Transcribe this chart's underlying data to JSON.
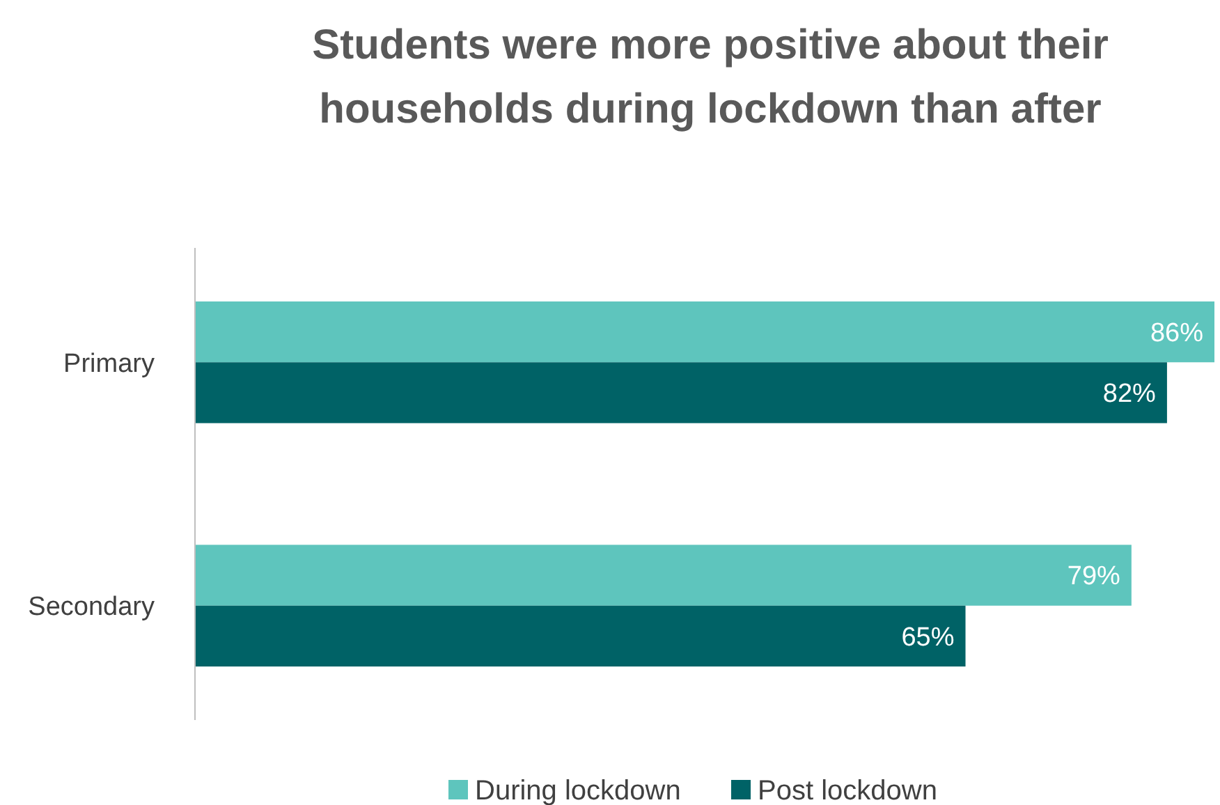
{
  "chart_data": {
    "type": "bar",
    "orientation": "horizontal",
    "title": "Students were more positive about their\nhouseholds during lockdown than after",
    "categories": [
      "Primary",
      "Secondary"
    ],
    "series": [
      {
        "name": "During lockdown",
        "color": "#5ec5bd",
        "values": [
          86,
          79
        ],
        "value_labels": [
          "86%",
          "79%"
        ]
      },
      {
        "name": "Post lockdown",
        "color": "#006266",
        "values": [
          82,
          65
        ],
        "value_labels": [
          "82%",
          "65%"
        ]
      }
    ],
    "legend": "bottom",
    "grid": false
  }
}
